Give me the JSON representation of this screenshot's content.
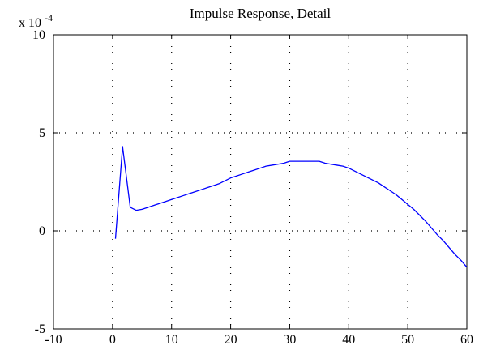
{
  "chart_data": {
    "type": "line",
    "title": "Impulse Response, Detail",
    "xlabel": "",
    "ylabel": "",
    "y_scale_factor": "x 10",
    "y_scale_exponent": "-4",
    "xlim": [
      -10,
      60
    ],
    "ylim": [
      -5,
      10
    ],
    "x_ticks": [
      -10,
      0,
      10,
      20,
      30,
      40,
      50,
      60
    ],
    "y_ticks": [
      -5,
      0,
      5,
      10
    ],
    "x_tick_labels": [
      "-10",
      "0",
      "10",
      "20",
      "30",
      "40",
      "50",
      "60"
    ],
    "y_tick_labels": [
      "-5",
      "0",
      "5",
      "10"
    ],
    "grid": true,
    "box": true,
    "series": [
      {
        "color": "#0000ff",
        "x": [
          0.5,
          1.7,
          3,
          4,
          5,
          6,
          7,
          8,
          9,
          10,
          11,
          12,
          13,
          14,
          15,
          16,
          17,
          18,
          19,
          20,
          21,
          22,
          23,
          24,
          25,
          26,
          27,
          28,
          29,
          30,
          31,
          32,
          33,
          34,
          35,
          36,
          37,
          38,
          39,
          40,
          41,
          42,
          43,
          44,
          45,
          46,
          47,
          48,
          49,
          50,
          51,
          52,
          53,
          54,
          55,
          56,
          57,
          58,
          59,
          60
        ],
        "y": [
          -0.4,
          4.3,
          1.2,
          1.05,
          1.1,
          1.2,
          1.3,
          1.4,
          1.5,
          1.6,
          1.7,
          1.8,
          1.9,
          2.0,
          2.1,
          2.2,
          2.3,
          2.4,
          2.55,
          2.7,
          2.8,
          2.9,
          3.0,
          3.1,
          3.2,
          3.3,
          3.35,
          3.4,
          3.45,
          3.55,
          3.55,
          3.55,
          3.55,
          3.55,
          3.55,
          3.45,
          3.4,
          3.35,
          3.3,
          3.2,
          3.05,
          2.9,
          2.75,
          2.6,
          2.45,
          2.25,
          2.05,
          1.85,
          1.6,
          1.35,
          1.1,
          0.8,
          0.5,
          0.15,
          -0.2,
          -0.5,
          -0.85,
          -1.2,
          -1.5,
          -1.85
        ]
      }
    ]
  }
}
